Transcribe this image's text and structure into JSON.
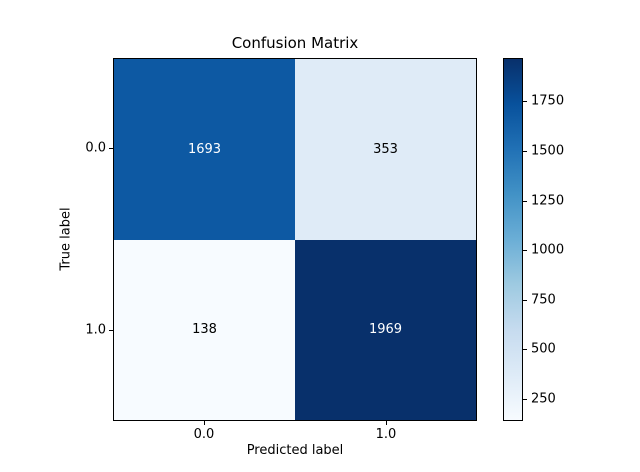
{
  "chart_data": {
    "type": "heatmap",
    "title": "Confusion Matrix",
    "xlabel": "Predicted label",
    "ylabel": "True label",
    "x_tick_labels": [
      "0.0",
      "1.0"
    ],
    "y_tick_labels": [
      "0.0",
      "1.0"
    ],
    "matrix": [
      [
        1693,
        353
      ],
      [
        138,
        1969
      ]
    ],
    "vmin": 138,
    "vmax": 1969,
    "colormap": "Blues",
    "cells": [
      {
        "row": 0,
        "col": 0,
        "value": "1693",
        "color": "#0d59a3",
        "text_color": "#ffffff"
      },
      {
        "row": 0,
        "col": 1,
        "value": "353",
        "color": "#dfebf7",
        "text_color": "#000000"
      },
      {
        "row": 1,
        "col": 0,
        "value": "138",
        "color": "#f7fbff",
        "text_color": "#000000"
      },
      {
        "row": 1,
        "col": 1,
        "value": "1969",
        "color": "#08306b",
        "text_color": "#ffffff"
      }
    ],
    "colorbar": {
      "gradient_stops": [
        "#f7fbff",
        "#deebf7",
        "#c6dbef",
        "#9ecae1",
        "#6baed6",
        "#4292c6",
        "#2171b5",
        "#08519c",
        "#08306b"
      ],
      "ticks": [
        {
          "value": 250,
          "label": "250"
        },
        {
          "value": 500,
          "label": "500"
        },
        {
          "value": 750,
          "label": "750"
        },
        {
          "value": 1000,
          "label": "1000"
        },
        {
          "value": 1250,
          "label": "1250"
        },
        {
          "value": 1500,
          "label": "1500"
        },
        {
          "value": 1750,
          "label": "1750"
        }
      ]
    },
    "layout": {
      "grid": false,
      "legend": false,
      "colorbar_position": "right"
    }
  }
}
